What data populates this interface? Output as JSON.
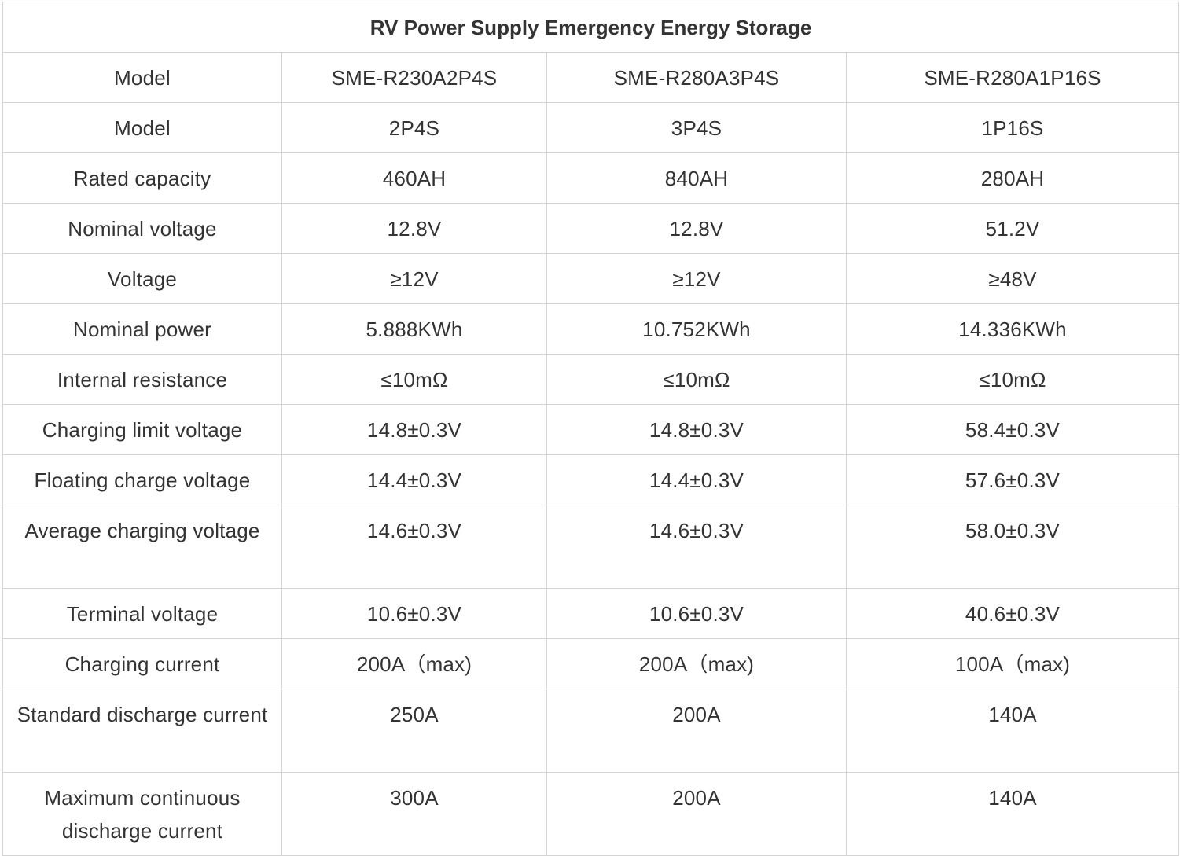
{
  "title": "RV Power Supply Emergency Energy Storage",
  "rows": [
    {
      "label": "Model",
      "values": [
        "SME-R230A2P4S",
        "SME-R280A3P4S",
        "SME-R280A1P16S"
      ]
    },
    {
      "label": "Model",
      "values": [
        "2P4S",
        "3P4S",
        "1P16S"
      ]
    },
    {
      "label": "Rated capacity",
      "values": [
        "460AH",
        "840AH",
        "280AH"
      ]
    },
    {
      "label": "Nominal voltage",
      "values": [
        "12.8V",
        "12.8V",
        "51.2V"
      ]
    },
    {
      "label": "Voltage",
      "values": [
        "≥12V",
        "≥12V",
        "≥48V"
      ]
    },
    {
      "label": "Nominal power",
      "values": [
        "5.888KWh",
        "10.752KWh",
        "14.336KWh"
      ]
    },
    {
      "label": "Internal resistance",
      "values": [
        "≤10mΩ",
        "≤10mΩ",
        "≤10mΩ"
      ]
    },
    {
      "label": "Charging limit voltage",
      "values": [
        "14.8±0.3V",
        "14.8±0.3V",
        "58.4±0.3V"
      ]
    },
    {
      "label": "Floating charge voltage",
      "values": [
        "14.4±0.3V",
        "14.4±0.3V",
        "57.6±0.3V"
      ]
    },
    {
      "label": "Average charging voltage",
      "values": [
        "14.6±0.3V",
        "14.6±0.3V",
        "58.0±0.3V"
      ]
    },
    {
      "label": "Terminal voltage",
      "values": [
        "10.6±0.3V",
        "10.6±0.3V",
        "40.6±0.3V"
      ]
    },
    {
      "label": "Charging current",
      "values": [
        "200A（max)",
        "200A（max)",
        "100A（max)"
      ]
    },
    {
      "label": "Standard discharge current",
      "values": [
        "250A",
        "200A",
        "140A"
      ]
    },
    {
      "label": "Maximum continuous discharge current",
      "values": [
        "300A",
        "200A",
        "140A"
      ]
    }
  ]
}
